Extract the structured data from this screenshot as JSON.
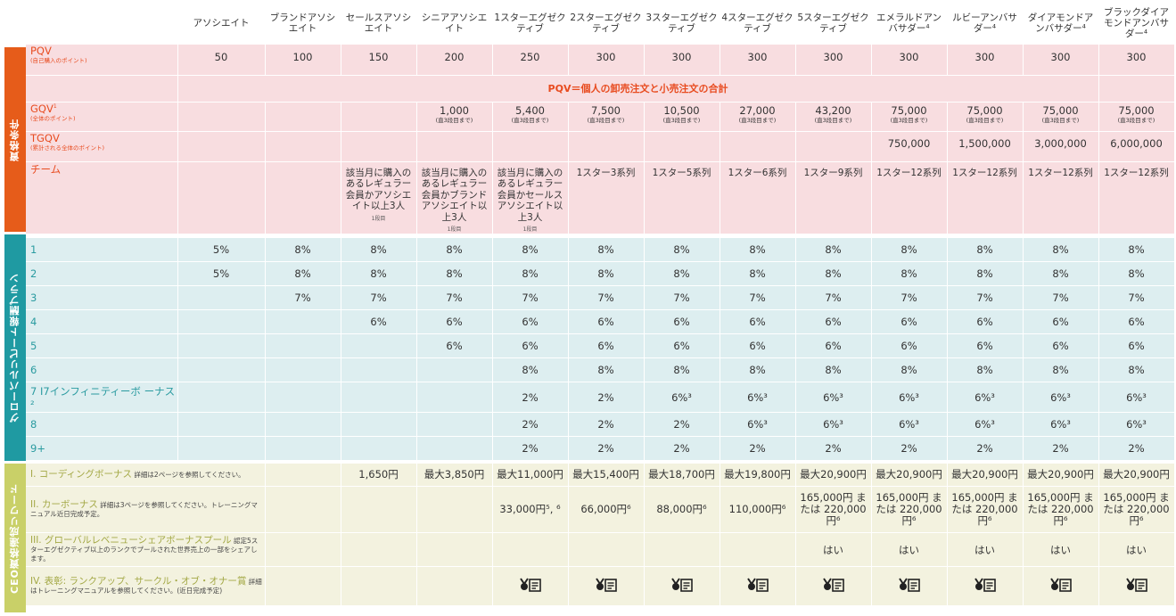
{
  "sections": {
    "qual": "資格条件",
    "plan": "グローバルリピート報酬プラン",
    "ceo": "CEO資格達成リワード"
  },
  "colors": {
    "orange": "#e65c1a",
    "teal": "#1f9aa2",
    "olive": "#c9d068",
    "pink_bg": "#f8dde0",
    "teal_bg": "#ddeef0",
    "olive_bg": "#f3f2df"
  },
  "ranks": [
    "アソシエイト",
    "ブランドアソシエイト",
    "セールスアソシエイト",
    "シニアアソシエイト",
    "1スターエグゼクティブ",
    "2スターエグゼクティブ",
    "3スターエグゼクティブ",
    "4スターエグゼクティブ",
    "5スターエグゼクティブ",
    "エメラルドアンバサダー⁴",
    "ルビーアンバサダー⁴",
    "ダイアモンドアンバサダー⁴",
    "ブラックダイアモンドアンバサダー⁴"
  ],
  "pqv": {
    "label": "PQV",
    "sub": "(自己購入のポイント)",
    "values": [
      "50",
      "100",
      "150",
      "200",
      "250",
      "300",
      "300",
      "300",
      "300",
      "300",
      "300",
      "300",
      "300"
    ],
    "note": "PQV＝個人の卸売注文と小売注文の合計"
  },
  "gqv": {
    "label": "GQV",
    "sup": "1",
    "sub": "(全体のポイント)",
    "values": [
      "",
      "",
      "",
      "1,000",
      "5,400",
      "7,500",
      "10,500",
      "27,000",
      "43,200",
      "75,000",
      "75,000",
      "75,000",
      "75,000"
    ],
    "subnote": "(直3段目まで)"
  },
  "tgqv": {
    "label": "TGQV",
    "sub": "(累計される全体のポイント)",
    "values": [
      "",
      "",
      "",
      "",
      "",
      "",
      "",
      "",
      "",
      "750,000",
      "1,500,000",
      "3,000,000",
      "6,000,000"
    ]
  },
  "team": {
    "label": "チーム",
    "values": [
      "",
      "",
      "該当月に購入のあるレギュラー会員かアソシエイト以上3人",
      "該当月に購入のあるレギュラー会員かブランドアソシエイト以上3人",
      "該当月に購入のあるレギュラー会員かセールスアソシエイト以上3人",
      "1スター3系列",
      "1スター5系列",
      "1スター6系列",
      "1スター9系列",
      "1スター12系列",
      "1スター12系列",
      "1スター12系列",
      "1スター12系列"
    ],
    "level_note": "1段目"
  },
  "levels": [
    {
      "label": "1",
      "values": [
        "5%",
        "8%",
        "8%",
        "8%",
        "8%",
        "8%",
        "8%",
        "8%",
        "8%",
        "8%",
        "8%",
        "8%",
        "8%"
      ]
    },
    {
      "label": "2",
      "values": [
        "5%",
        "8%",
        "8%",
        "8%",
        "8%",
        "8%",
        "8%",
        "8%",
        "8%",
        "8%",
        "8%",
        "8%",
        "8%"
      ]
    },
    {
      "label": "3",
      "values": [
        "",
        "7%",
        "7%",
        "7%",
        "7%",
        "7%",
        "7%",
        "7%",
        "7%",
        "7%",
        "7%",
        "7%",
        "7%"
      ]
    },
    {
      "label": "4",
      "values": [
        "",
        "",
        "6%",
        "6%",
        "6%",
        "6%",
        "6%",
        "6%",
        "6%",
        "6%",
        "6%",
        "6%",
        "6%"
      ]
    },
    {
      "label": "5",
      "values": [
        "",
        "",
        "",
        "6%",
        "6%",
        "6%",
        "6%",
        "6%",
        "6%",
        "6%",
        "6%",
        "6%",
        "6%"
      ]
    },
    {
      "label": "6",
      "values": [
        "",
        "",
        "",
        "",
        "8%",
        "8%",
        "8%",
        "8%",
        "8%",
        "8%",
        "8%",
        "8%",
        "8%"
      ]
    },
    {
      "label": "7 I7インフィニティーボ ーナス²",
      "values": [
        "",
        "",
        "",
        "",
        "2%",
        "2%",
        "6%³",
        "6%³",
        "6%³",
        "6%³",
        "6%³",
        "6%³",
        "6%³"
      ]
    },
    {
      "label": "8",
      "values": [
        "",
        "",
        "",
        "",
        "2%",
        "2%",
        "2%",
        "6%³",
        "6%³",
        "6%³",
        "6%³",
        "6%³",
        "6%³"
      ]
    },
    {
      "label": "9+",
      "values": [
        "",
        "",
        "",
        "",
        "2%",
        "2%",
        "2%",
        "2%",
        "2%",
        "2%",
        "2%",
        "2%",
        "2%"
      ]
    }
  ],
  "coding": {
    "title": "I. コーディングボーナス",
    "note": "詳細は2ページを参照してください。",
    "values": [
      "",
      "",
      "1,650円",
      "最大3,850円",
      "最大11,000円",
      "最大15,400円",
      "最大18,700円",
      "最大19,800円",
      "最大20,900円",
      "最大20,900円",
      "最大20,900円",
      "最大20,900円",
      "最大20,900円"
    ]
  },
  "car": {
    "title": "II. カーボーナス",
    "note": "詳細は3ページを参照してください。トレーニングマニュアル近日完成予定。",
    "values": [
      "",
      "",
      "",
      "",
      "33,000円⁵, ⁶",
      "66,000円⁶",
      "88,000円⁶",
      "110,000円⁶",
      "165,000円 または 220,000円⁶",
      "165,000円 または 220,000円⁶",
      "165,000円 または 220,000円⁶",
      "165,000円 または 220,000円⁶",
      "165,000円 または 220,000円⁶"
    ]
  },
  "pool": {
    "title": "III. グローバルレベニューシェアボーナスプール",
    "note": "認定5スターエグゼクティブ以上のランクでプールされた世界売上の一部をシェアします。",
    "values": [
      "",
      "",
      "",
      "",
      "",
      "",
      "",
      "",
      "はい",
      "はい",
      "はい",
      "はい",
      "はい"
    ]
  },
  "award": {
    "title": "IV. 表彰: ランクアップ、サークル・オブ・オナー賞",
    "note": "詳細はトレーニングマニュアルを参照してください。(近日完成予定)",
    "icon": "award-certificate-icon"
  }
}
